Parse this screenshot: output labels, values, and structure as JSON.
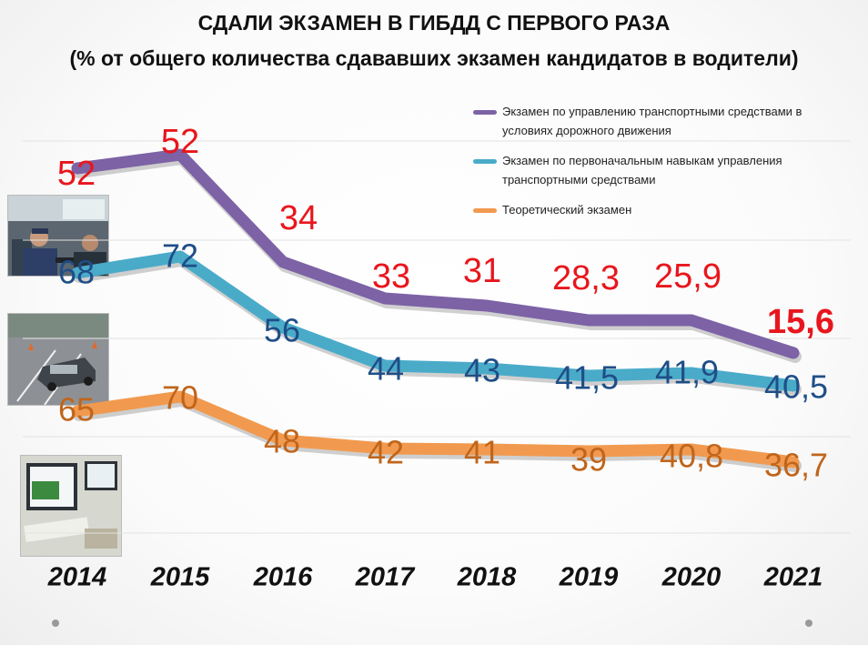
{
  "page": {
    "title": "СДАЛИ ЭКЗАМЕН В ГИБДД С ПЕРВОГО РАЗА",
    "subtitle": "(% от общего количества сдававших экзамен кандидатов в водители)"
  },
  "colors": {
    "purple": "#7d62a6",
    "blue": "#4aabc9",
    "orange": "#f19a4f",
    "purple_label": "#e8161d",
    "blue_label": "#1f4e87",
    "orange_label": "#c0651b"
  },
  "chart_data": {
    "type": "line",
    "title": "СДАЛИ ЭКЗАМЕН В ГИБДД С ПЕРВОГО РАЗА",
    "subtitle": "(% от общего количества сдававших экзамен кандидатов в водители)",
    "categories": [
      "2014",
      "2015",
      "2016",
      "2017",
      "2018",
      "2019",
      "2020",
      "2021"
    ],
    "legend_position": "top-right",
    "grid": true,
    "series": [
      {
        "name": "Экзамен по управлению транспортными средствами в условиях дорожного движения",
        "color": "#7d62a6",
        "values": [
          52,
          52,
          34,
          33,
          31,
          28.3,
          25.9,
          15.6
        ],
        "labels": [
          "52",
          "52",
          "34",
          "33",
          "31",
          "28,3",
          "25,9",
          "15,6"
        ]
      },
      {
        "name": "Экзамен по первоначальным навыкам управления транспортными средствами",
        "color": "#4aabc9",
        "values": [
          68,
          72,
          56,
          44,
          43,
          41.5,
          41.9,
          40.5
        ],
        "labels": [
          "68",
          "72",
          "56",
          "44",
          "43",
          "41,5",
          "41,9",
          "40,5"
        ]
      },
      {
        "name": "Теоретический экзамен",
        "color": "#f19a4f",
        "values": [
          65,
          70,
          48,
          42,
          41,
          39,
          40.8,
          36.7
        ],
        "labels": [
          "65",
          "70",
          "48",
          "42",
          "41",
          "39",
          "40,8",
          "36,7"
        ]
      }
    ]
  },
  "photos": [
    "car-instructor-photo",
    "training-ground-photo",
    "computer-exam-photo"
  ]
}
